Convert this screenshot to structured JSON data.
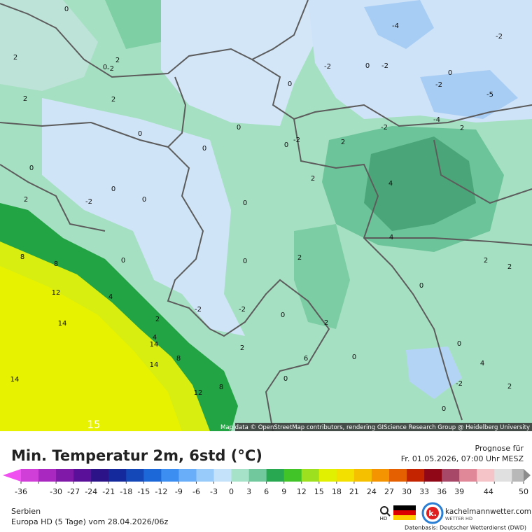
{
  "map": {
    "attribution": "Map data © OpenStreetMap contributors, rendering GIScience Research Group @ Heidelberg University",
    "labels": [
      0,
      2,
      0,
      -2,
      2,
      2,
      2,
      0,
      0,
      0,
      0,
      0,
      -2,
      2,
      -2,
      0,
      -2,
      -4,
      0,
      -2,
      -5,
      -4,
      2,
      -2,
      -2,
      0,
      0,
      -2,
      0,
      0,
      2,
      4,
      4,
      2,
      8,
      8,
      12,
      4,
      0,
      0,
      2,
      2,
      2,
      0,
      -2,
      -2,
      0,
      2,
      14,
      2,
      4,
      14,
      2,
      8,
      14,
      6,
      0,
      0,
      4,
      0,
      -2,
      2,
      8,
      12,
      14,
      0,
      15
    ]
  },
  "header": {
    "title": "Min. Temperatur 2m, 6std (°C)",
    "forecast_label": "Prognose für",
    "forecast_time": "Fr. 01.05.2026, 07:00 Uhr MESZ"
  },
  "colorbar": {
    "ticks": [
      -36,
      -33,
      -30,
      -27,
      -24,
      -21,
      -18,
      -15,
      -12,
      -9,
      -6,
      -3,
      0,
      3,
      6,
      9,
      12,
      15,
      18,
      21,
      24,
      27,
      30,
      33,
      36,
      39,
      42,
      45,
      48,
      50
    ],
    "tick_labels_shown": [
      -36,
      -30,
      -27,
      -24,
      -21,
      -18,
      -15,
      -12,
      -9,
      -6,
      -3,
      0,
      3,
      6,
      9,
      12,
      15,
      18,
      21,
      24,
      27,
      30,
      33,
      36,
      39,
      44,
      50
    ],
    "colors": [
      "#f050f0",
      "#d040d8",
      "#a828c0",
      "#8018a8",
      "#5a1098",
      "#2c1488",
      "#142a9c",
      "#1448b8",
      "#1c68d8",
      "#3c8ef0",
      "#68aef8",
      "#98cafa",
      "#c4e2fa",
      "#a6e2c8",
      "#70c89c",
      "#28a850",
      "#40c428",
      "#9ce020",
      "#e0f000",
      "#f4e000",
      "#f4c000",
      "#f49400",
      "#e46000",
      "#c42400",
      "#900818",
      "#a84868",
      "#e08898",
      "#f4c4c8",
      "#e0e0e0",
      "#b8b8b8",
      "#8c8c8c"
    ]
  },
  "footer": {
    "region": "Serbien",
    "model": "Europa HD (5 Tage) vom  28.04.2026/06z",
    "hd": "HD",
    "brand": "kachelmannwetter.com",
    "brand_sub": "WETTER HD",
    "source": "Datenbasis: Deutscher Wetterdienst (DWD)"
  }
}
